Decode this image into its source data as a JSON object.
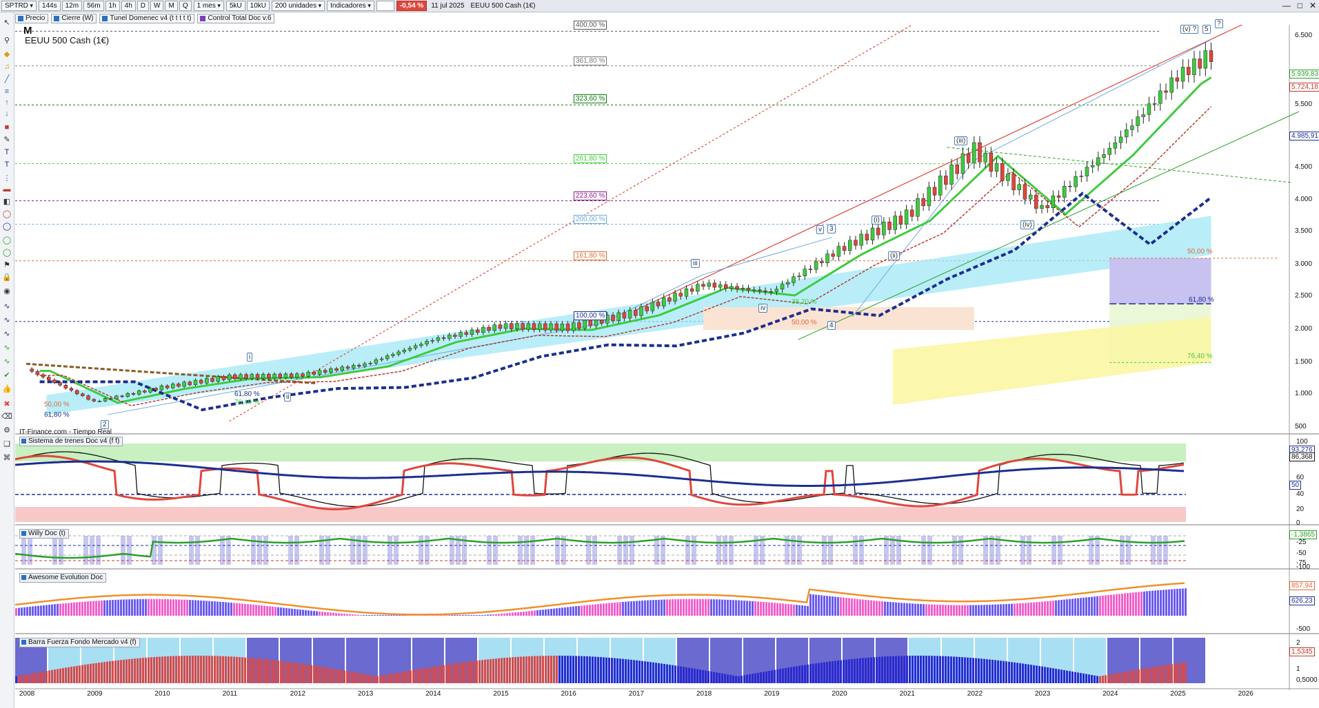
{
  "toolbar": {
    "symbol": "SPTRD",
    "buttons": [
      "144s",
      "12m",
      "56m",
      "1h",
      "4h",
      "D",
      "W",
      "M",
      "Q"
    ],
    "period": "1 mes",
    "size_buttons": [
      "5kU",
      "10kU"
    ],
    "units": "200 unidades",
    "indicators_label": "Indicadores",
    "change": "-0,54 %",
    "date": "11 jul 2025",
    "instrument": "EEUU 500 Cash (1€)"
  },
  "chips": [
    {
      "label": "Precio",
      "color": "#2d6fc0"
    },
    {
      "label": "Cierre (W)",
      "color": "#2d6fc0"
    },
    {
      "label": "Tunel Domenec v4 (t t t t t)",
      "color": "#2d6fc0"
    },
    {
      "label": "Control Total Doc v.6",
      "color": "#7a3fc0"
    }
  ],
  "main": {
    "period_code": "M",
    "title": "EEUU 500 Cash (1€)",
    "watermark": "IT-Finance.com - Tiempo Real",
    "y_labels": [
      "6.500",
      "5.500",
      "4.500",
      "4.000",
      "3.500",
      "3.000",
      "2.500",
      "2.000",
      "1.500",
      "1.000",
      "500"
    ],
    "price_tags": [
      {
        "text": "5.939,83",
        "color": "#2aa02a"
      },
      {
        "text": "5.724,18",
        "color": "#c0392b"
      },
      {
        "text": "4.985,91",
        "color": "#1c2e8f"
      }
    ],
    "fib_levels": [
      {
        "text": "400,00 %",
        "color": "#555555"
      },
      {
        "text": "361,80 %",
        "color": "#777777"
      },
      {
        "text": "323,60 %",
        "color": "#0a7a0a"
      },
      {
        "text": "261,80 %",
        "color": "#3ecb3e"
      },
      {
        "text": "223,60 %",
        "color": "#8e1b8e"
      },
      {
        "text": "200,00 %",
        "color": "#6fa8dc"
      },
      {
        "text": "161,80 %",
        "color": "#e06a3c"
      },
      {
        "text": "100,00 %",
        "color": "#1c2e8f"
      }
    ],
    "retracements": [
      "50,00 %",
      "61,80 %",
      "76,40 %"
    ],
    "lower_left_fibs": [
      "50,00 %",
      "61,80 %"
    ],
    "mid_fibs": [
      "61,80 %",
      "76,40 %"
    ],
    "pandemic_fibs": [
      "38,20 %",
      "50,00 %"
    ],
    "waves": [
      "(v) ?",
      "5",
      "?",
      "(iii)",
      "(i)",
      "(ii)",
      "(iv)",
      "v",
      "3",
      "iii",
      "iv",
      "4",
      "i",
      "ii",
      "2"
    ]
  },
  "panels": {
    "trenes": {
      "title": "Sistema de trenes Doc v4 (f f)",
      "y_labels": [
        "100",
        "60",
        "40",
        "20",
        "0"
      ],
      "tags": [
        "93,276",
        "86,368",
        "50"
      ]
    },
    "willy": {
      "title": "Willy Doc (t)",
      "y_labels": [
        "-25",
        "-50",
        "-75",
        "-100"
      ],
      "tags": [
        "-1,3865"
      ]
    },
    "awesome": {
      "title": "Awesome Evolution Doc",
      "y_labels": [
        "-500"
      ],
      "tags": [
        "857,94",
        "626,23"
      ]
    },
    "barra": {
      "title": "Barra Fuerza Fondo Mercado v4 (f)",
      "y_labels": [
        "2",
        "1",
        "0,5000"
      ],
      "tags": [
        "1,5345"
      ]
    }
  },
  "x_axis": [
    "2008",
    "2009",
    "2010",
    "2011",
    "2012",
    "2013",
    "2014",
    "2015",
    "2016",
    "2017",
    "2018",
    "2019",
    "2020",
    "2021",
    "2022",
    "2023",
    "2024",
    "2025",
    "2026"
  ],
  "colors": {
    "bull": "#3ecb3e",
    "bear": "#e0463c",
    "navy": "#1c2e8f",
    "accent": "#2d6fc0"
  },
  "chart_data": {
    "type": "line",
    "title": "EEUU 500 Cash (1€)",
    "x": [
      2008,
      2009,
      2010,
      2011,
      2012,
      2013,
      2014,
      2015,
      2016,
      2017,
      2018,
      2019,
      2020,
      2021,
      2022,
      2023,
      2024,
      2025,
      2025.5
    ],
    "series": [
      {
        "values": [
          1400,
          900,
          1120,
          1280,
          1300,
          1470,
          1850,
          2060,
          2040,
          2270,
          2700,
          2580,
          3230,
          3750,
          4760,
          3850,
          4780,
          5890,
          6230
        ]
      }
    ],
    "ylim": [
      500,
      6700
    ]
  }
}
